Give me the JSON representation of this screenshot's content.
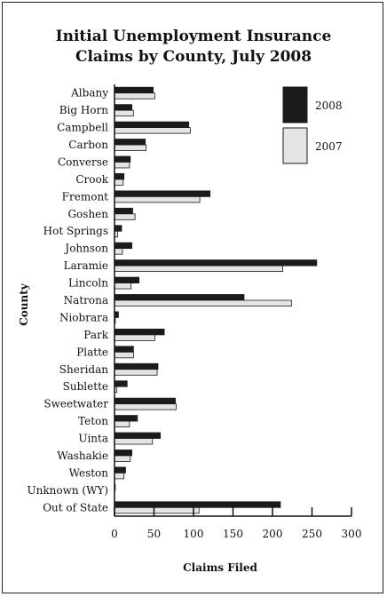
{
  "chart_data": {
    "type": "bar",
    "orientation": "horizontal",
    "title": "Initial Unemployment Insurance Claims by County, July 2008",
    "title_lines": [
      "Initial Unemployment Insurance",
      "Claims by County, July 2008"
    ],
    "xlabel": "Claims Filed",
    "ylabel": "County",
    "xlim": [
      0,
      300
    ],
    "xticks": [
      0,
      50,
      100,
      150,
      200,
      250,
      300
    ],
    "grid": false,
    "legend_position": "top-right",
    "categories": [
      "Albany",
      "Big Horn",
      "Campbell",
      "Carbon",
      "Converse",
      "Crook",
      "Fremont",
      "Goshen",
      "Hot Springs",
      "Johnson",
      "Laramie",
      "Lincoln",
      "Natrona",
      "Niobrara",
      "Park",
      "Platte",
      "Sheridan",
      "Sublette",
      "Sweetwater",
      "Teton",
      "Uinta",
      "Washakie",
      "Weston",
      "Unknown (WY)",
      "Out of State"
    ],
    "series": [
      {
        "name": "2008",
        "color": "#1c1a1b",
        "values": [
          49,
          22,
          94,
          39,
          20,
          12,
          121,
          23,
          9,
          22,
          256,
          31,
          164,
          5,
          63,
          24,
          55,
          16,
          77,
          29,
          58,
          22,
          14,
          1,
          210
        ]
      },
      {
        "name": "2007",
        "color": "#e4e4e4",
        "values": [
          51,
          24,
          96,
          40,
          19,
          11,
          108,
          26,
          4,
          10,
          213,
          21,
          224,
          1,
          51,
          24,
          54,
          3,
          78,
          19,
          48,
          20,
          12,
          0,
          107
        ]
      }
    ]
  }
}
